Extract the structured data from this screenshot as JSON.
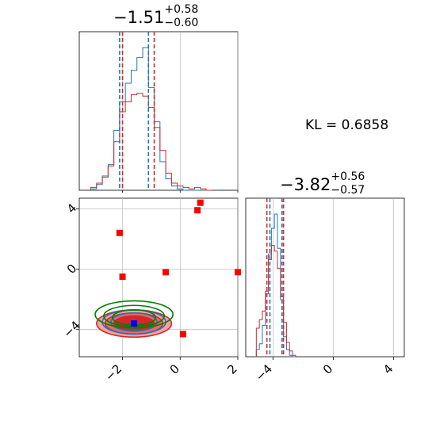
{
  "chart_data": {
    "type": "corner",
    "parameters": [
      "p1",
      "p2"
    ],
    "titles": [
      {
        "median": "−1.51",
        "plus": "+0.58",
        "minus": "−0.60"
      },
      {
        "median": "−3.82",
        "plus": "+0.56",
        "minus": "−0.57"
      }
    ],
    "kl_label": "KL = 0.6858",
    "axis_ranges": {
      "p1": [
        -3.5,
        2.0
      ],
      "p2": [
        -5.8,
        4.7
      ]
    },
    "ticks": {
      "p1": [
        -2,
        0,
        2
      ],
      "p2_y": [
        4,
        0,
        -4
      ],
      "p2_x": [
        -4,
        0,
        4
      ]
    },
    "tick_labels": {
      "p1": [
        "−2",
        "0",
        "2"
      ],
      "p2_y": [
        "4",
        "0",
        "−4"
      ],
      "p2_x": [
        "−4",
        "0",
        "4"
      ]
    },
    "colors": {
      "blue": "#1f77b4",
      "red": "#d62728",
      "green": "#008000",
      "grid": "#b0b0b0"
    },
    "quantiles_p1": {
      "blue": [
        -2.1,
        -1.1
      ],
      "red": [
        -2.0,
        -0.9
      ]
    },
    "quantiles_p2": {
      "blue": [
        -4.2,
        -3.4
      ],
      "red": [
        -4.4,
        -3.3
      ]
    },
    "hist_p1_centers": [
      -3.0,
      -2.8,
      -2.6,
      -2.4,
      -2.2,
      -2.0,
      -1.8,
      -1.6,
      -1.4,
      -1.2,
      -1.0,
      -0.8,
      -0.6,
      -0.4,
      -0.2,
      0.0,
      0.2,
      0.4,
      0.6,
      0.8,
      1.0
    ],
    "hist_p1_blue": [
      0.01,
      0.04,
      0.1,
      0.18,
      0.42,
      0.62,
      0.75,
      0.84,
      0.93,
      1.0,
      0.72,
      0.48,
      0.2,
      0.08,
      0.03,
      0.01,
      0,
      0,
      0,
      0,
      0
    ],
    "hist_p1_red": [
      0.02,
      0.05,
      0.09,
      0.17,
      0.34,
      0.55,
      0.62,
      0.67,
      0.68,
      0.66,
      0.58,
      0.44,
      0.28,
      0.12,
      0.05,
      0.03,
      0.02,
      0.01,
      0.02,
      0.01,
      0
    ],
    "hist_p2_centers": [
      -5.0,
      -4.8,
      -4.6,
      -4.4,
      -4.2,
      -4.0,
      -3.8,
      -3.6,
      -3.4,
      -3.2,
      -3.0,
      -2.8,
      -2.6
    ],
    "hist_p2_blue": [
      0.05,
      0.09,
      0.22,
      0.44,
      0.72,
      0.9,
      1.0,
      0.76,
      0.4,
      0.14,
      0.05,
      0.01,
      0
    ],
    "hist_p2_red": [
      0.2,
      0.26,
      0.32,
      0.46,
      0.68,
      0.78,
      0.74,
      0.62,
      0.42,
      0.24,
      0.1,
      0.04,
      0.01
    ],
    "scatter_points": [
      [
        0.7,
        4.4
      ],
      [
        0.6,
        3.9
      ],
      [
        -2.1,
        2.4
      ],
      [
        -2.0,
        -0.5
      ],
      [
        -0.5,
        -0.2
      ],
      [
        2.0,
        -0.2
      ],
      [
        0.1,
        -4.3
      ],
      [
        -1.6,
        -3.6
      ]
    ],
    "contours_red": [
      [
        -1.6,
        -3.6,
        1.3,
        0.9
      ],
      [
        -1.6,
        -3.6,
        1.0,
        0.7
      ],
      [
        -1.6,
        -3.6,
        0.7,
        0.5
      ]
    ],
    "contours_blue": [
      [
        -1.6,
        -3.5,
        1.1,
        0.8
      ],
      [
        -1.6,
        -3.5,
        0.8,
        0.6
      ]
    ],
    "contours_green": [
      [
        -1.6,
        -3.0,
        1.35,
        0.9
      ],
      [
        -1.6,
        -3.1,
        1.05,
        0.7
      ],
      [
        -1.6,
        -3.2,
        0.75,
        0.5
      ]
    ]
  }
}
